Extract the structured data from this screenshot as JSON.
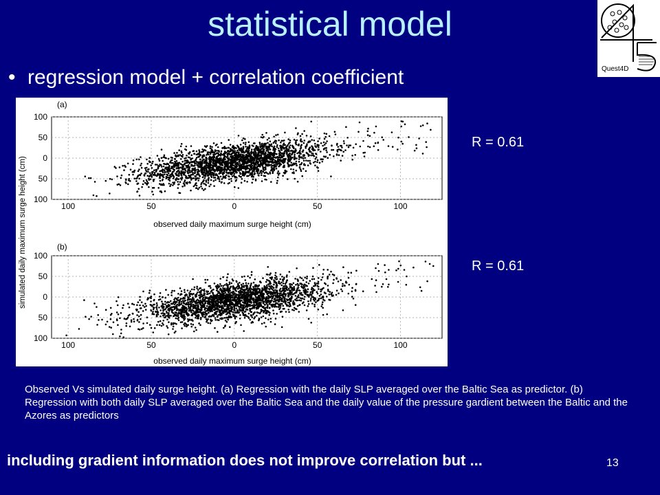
{
  "slide": {
    "title": "statistical model",
    "bullet": "regression model + correlation coefficient",
    "bullet_symbol": "•",
    "r_values": [
      "R = 0.61",
      "R = 0.61"
    ],
    "caption": "Observed Vs simulated daily surge height. (a) Regression with the daily SLP averaged over the Baltic Sea as predictor. (b) Regression with both daily SLP averaged over the Baltic Sea and the daily value of the pressure gardient between the Baltic and the Azores as predictors",
    "footer": "including gradient information does not improve correlation but ...",
    "slide_number": "13",
    "logo_text": "Quest4D",
    "colors": {
      "background": "#000080",
      "title": "#b8f0ff",
      "text": "#ffffff"
    }
  },
  "figure": {
    "ylabel": "simulated daily maximum surge height (cm)",
    "xlabel": "observed daily maximum surge height (cm)",
    "xticks": [
      "100",
      "50",
      "0",
      "50",
      "100"
    ],
    "yticks": [
      "100",
      "50",
      "0",
      "50",
      "100"
    ],
    "panels": [
      {
        "label": "(a)"
      },
      {
        "label": "(b)"
      }
    ]
  },
  "chart_data": [
    {
      "type": "scatter",
      "title": "(a)",
      "xlabel": "observed daily maximum surge height (cm)",
      "ylabel": "simulated daily maximum surge height (cm)",
      "xlim": [
        -110,
        125
      ],
      "ylim": [
        -100,
        100
      ],
      "grid": true,
      "annotation": "R = 0.61",
      "point_cloud": {
        "x_center": 0,
        "y_center": -10,
        "x_spread": 28,
        "y_spread": 22,
        "slope": 0.5,
        "approx_points": 2500
      }
    },
    {
      "type": "scatter",
      "title": "(b)",
      "xlabel": "observed daily maximum surge height (cm)",
      "ylabel": "simulated daily maximum surge height (cm)",
      "xlim": [
        -110,
        125
      ],
      "ylim": [
        -100,
        100
      ],
      "grid": true,
      "annotation": "R = 0.61",
      "point_cloud": {
        "x_center": 0,
        "y_center": -10,
        "x_spread": 28,
        "y_spread": 22,
        "slope": 0.5,
        "approx_points": 2500
      }
    }
  ]
}
